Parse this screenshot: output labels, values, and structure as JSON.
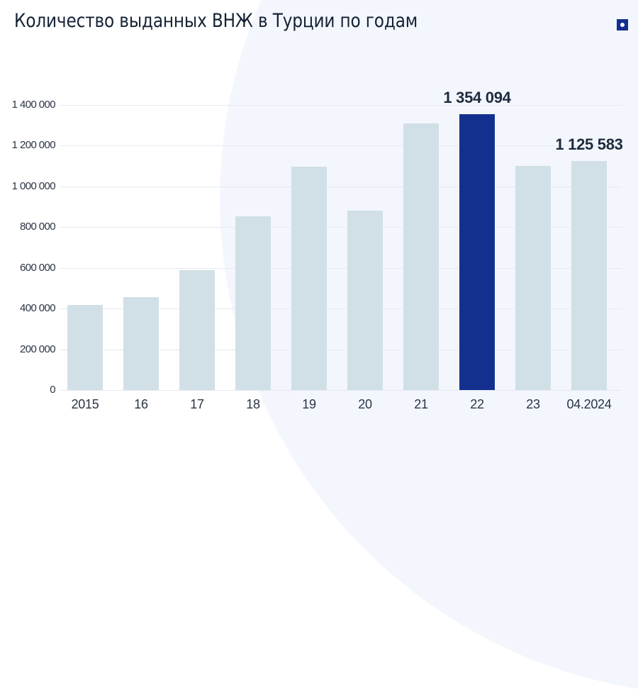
{
  "header": {
    "title": "Количество выданных ВНЖ в Турции по годам",
    "badge_icon": "square-dot-icon"
  },
  "colors": {
    "bar": "#d1dfe6",
    "highlight": "#14308f",
    "text": "#152235",
    "grid": "#e6eaf0"
  },
  "chart_data": {
    "type": "bar",
    "title": "Количество выданных ВНЖ в Турции по годам",
    "xlabel": "",
    "ylabel": "",
    "categories": [
      "2015",
      "16",
      "17",
      "18",
      "19",
      "20",
      "21",
      "22",
      "23",
      "04.2024"
    ],
    "values": [
      418000,
      456000,
      589000,
      853000,
      1097000,
      881000,
      1310000,
      1354094,
      1101000,
      1125583
    ],
    "highlighted_index": 7,
    "data_labels": [
      {
        "category": "22",
        "text": "1 354 094"
      },
      {
        "category": "04.2024",
        "text": "1 125 583"
      }
    ],
    "yticks": [
      "0",
      "200 000",
      "400 000",
      "600 000",
      "800 000",
      "1 000 000",
      "1 200 000",
      "1 400 000"
    ],
    "ylim": [
      0,
      1400000
    ],
    "grid": true,
    "legend": null
  }
}
